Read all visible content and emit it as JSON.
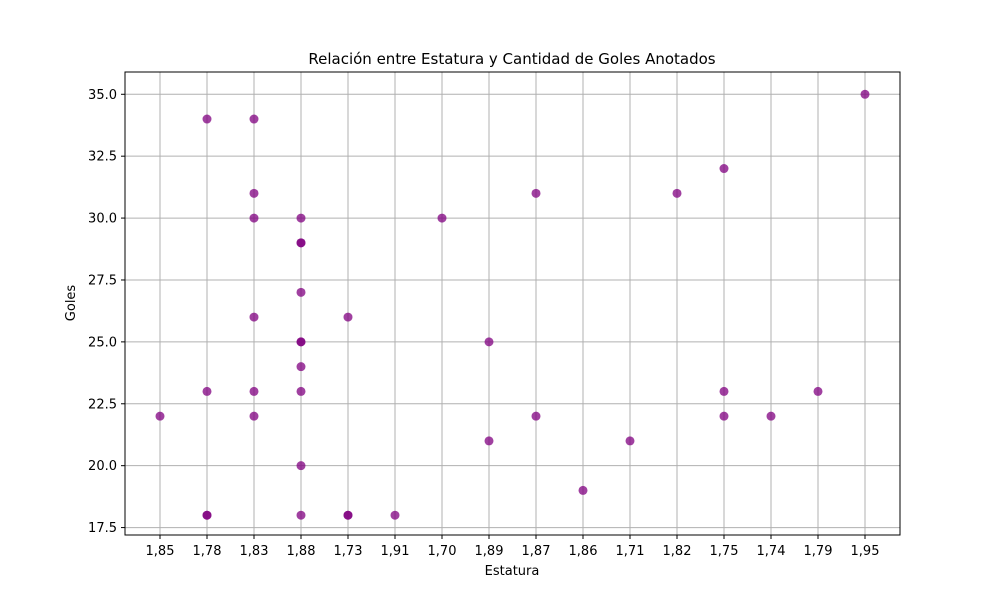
{
  "chart_data": {
    "type": "scatter",
    "title": "Relación entre Estatura y Cantidad de Goles Anotados",
    "xlabel": "Estatura",
    "ylabel": "Goles",
    "categories": [
      "1,85",
      "1,78",
      "1,83",
      "1,88",
      "1,73",
      "1,91",
      "1,70",
      "1,89",
      "1,87",
      "1,86",
      "1,71",
      "1,82",
      "1,75",
      "1,74",
      "1,79",
      "1,95"
    ],
    "y_ticks": [
      "17.5",
      "20.0",
      "22.5",
      "25.0",
      "27.5",
      "30.0",
      "32.5",
      "35.0"
    ],
    "ylim": [
      17.2,
      35.9
    ],
    "grid": true,
    "marker_color": "#800080",
    "grid_color": "#b0b0b0",
    "points": [
      {
        "x": "1,85",
        "y": 22
      },
      {
        "x": "1,78",
        "y": 34
      },
      {
        "x": "1,78",
        "y": 23
      },
      {
        "x": "1,78",
        "y": 18
      },
      {
        "x": "1,78",
        "y": 18
      },
      {
        "x": "1,83",
        "y": 34
      },
      {
        "x": "1,83",
        "y": 31
      },
      {
        "x": "1,83",
        "y": 30
      },
      {
        "x": "1,83",
        "y": 26
      },
      {
        "x": "1,83",
        "y": 23
      },
      {
        "x": "1,83",
        "y": 22
      },
      {
        "x": "1,88",
        "y": 30
      },
      {
        "x": "1,88",
        "y": 29
      },
      {
        "x": "1,88",
        "y": 29
      },
      {
        "x": "1,88",
        "y": 27
      },
      {
        "x": "1,88",
        "y": 25
      },
      {
        "x": "1,88",
        "y": 25
      },
      {
        "x": "1,88",
        "y": 24
      },
      {
        "x": "1,88",
        "y": 23
      },
      {
        "x": "1,88",
        "y": 20
      },
      {
        "x": "1,88",
        "y": 18
      },
      {
        "x": "1,73",
        "y": 26
      },
      {
        "x": "1,73",
        "y": 18
      },
      {
        "x": "1,73",
        "y": 18
      },
      {
        "x": "1,91",
        "y": 18
      },
      {
        "x": "1,70",
        "y": 30
      },
      {
        "x": "1,89",
        "y": 25
      },
      {
        "x": "1,89",
        "y": 21
      },
      {
        "x": "1,87",
        "y": 31
      },
      {
        "x": "1,87",
        "y": 22
      },
      {
        "x": "1,86",
        "y": 19
      },
      {
        "x": "1,71",
        "y": 21
      },
      {
        "x": "1,82",
        "y": 31
      },
      {
        "x": "1,75",
        "y": 32
      },
      {
        "x": "1,75",
        "y": 23
      },
      {
        "x": "1,75",
        "y": 22
      },
      {
        "x": "1,74",
        "y": 22
      },
      {
        "x": "1,79",
        "y": 23
      },
      {
        "x": "1,95",
        "y": 35
      }
    ]
  }
}
